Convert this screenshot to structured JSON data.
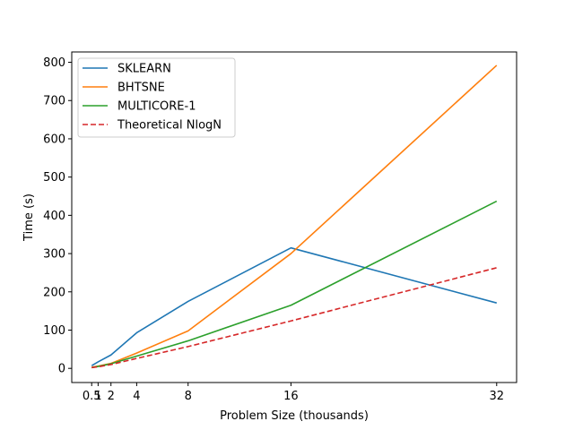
{
  "chart_data": {
    "type": "line",
    "xlabel": "Problem Size (thousands)",
    "ylabel": "Time (s)",
    "x": [
      0.5,
      1,
      2,
      4,
      8,
      16,
      32
    ],
    "xticks": [
      0.5,
      1,
      2,
      4,
      8,
      16,
      32
    ],
    "xtick_labels": [
      "0.5",
      "1",
      "2",
      "4",
      "8",
      "16",
      "32"
    ],
    "yticks": [
      0,
      100,
      200,
      300,
      400,
      500,
      600,
      700,
      800
    ],
    "xlim": [
      -1.05,
      33.55
    ],
    "ylim": [
      -37,
      827
    ],
    "grid": false,
    "legend_position": "top-left",
    "series": [
      {
        "name": "SKLEARN",
        "color": "#1f77b4",
        "style": "solid",
        "values": [
          7,
          17,
          35,
          93,
          175,
          315,
          171
        ]
      },
      {
        "name": "BHTSNE",
        "color": "#ff7f0e",
        "style": "solid",
        "values": [
          3,
          6,
          13,
          40,
          98,
          300,
          792
        ]
      },
      {
        "name": "MULTICORE-1",
        "color": "#2ca02c",
        "style": "solid",
        "values": [
          2,
          5,
          12,
          32,
          72,
          165,
          437
        ]
      },
      {
        "name": "Theoretical NlogN",
        "color": "#d62728",
        "style": "dashed",
        "values": [
          2,
          4,
          10,
          26,
          57,
          124,
          263
        ]
      }
    ]
  }
}
